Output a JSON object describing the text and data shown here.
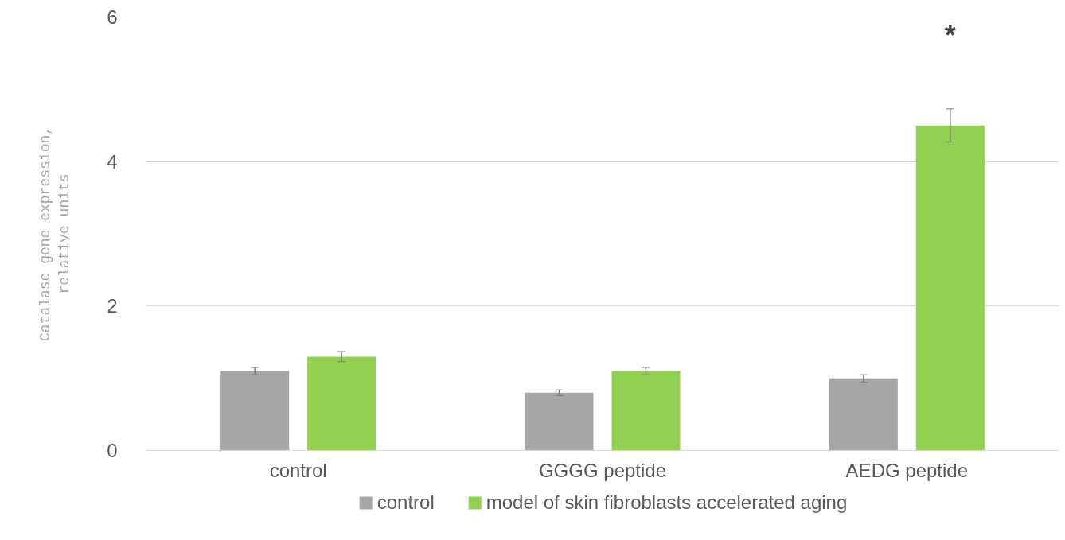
{
  "chart_data": {
    "type": "bar",
    "ylabel": "Catalase gene expression,\nrelative units",
    "categories": [
      "control",
      "GGGG peptide",
      "AEDG peptide"
    ],
    "series": [
      {
        "name": "control",
        "color": "#a6a6a6",
        "values": [
          1.1,
          0.8,
          1.0
        ],
        "errors": [
          0.05,
          0.04,
          0.05
        ]
      },
      {
        "name": "model of skin fibroblasts accelerated aging",
        "color": "#92d050",
        "values": [
          1.3,
          1.1,
          4.5
        ],
        "errors": [
          0.07,
          0.05,
          0.23
        ]
      }
    ],
    "ylim": [
      0,
      6
    ],
    "yticks": [
      0,
      2,
      4,
      6
    ],
    "grid": "y",
    "legend": "bottom",
    "annotations": [
      "*"
    ]
  }
}
